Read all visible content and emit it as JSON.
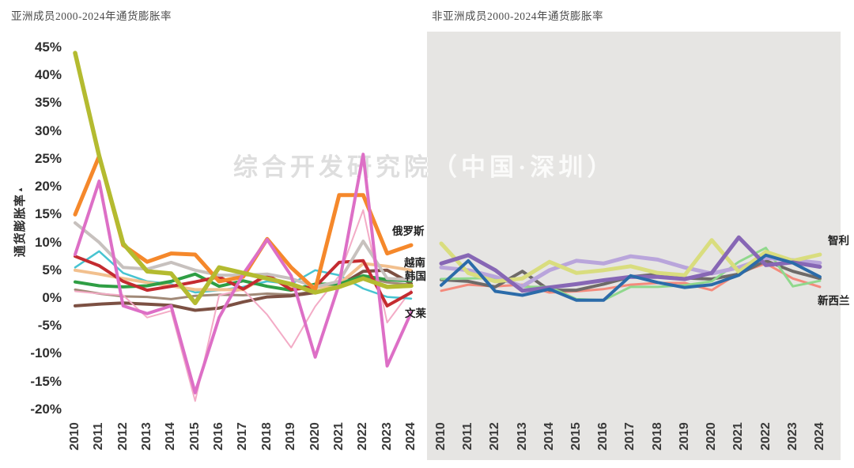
{
  "watermark": {
    "text": "综合开发研究院（中国·深圳）"
  },
  "chart_data": [
    {
      "type": "line",
      "title": "亚洲成员2000-2024年通货膨胀率",
      "ylabel": "通货膨胀率",
      "ylabel_mark": "▴",
      "ylim": [
        -20,
        45
      ],
      "grid": false,
      "legend": "none",
      "background": "#ffffff",
      "x_labels": [
        "2010",
        "2011",
        "2012",
        "2013",
        "2014",
        "2015",
        "2016",
        "2017",
        "2018",
        "2019",
        "2020",
        "2021",
        "2022",
        "2023",
        "2024"
      ],
      "ytick_values": [
        45,
        40,
        35,
        30,
        25,
        20,
        15,
        10,
        5,
        0,
        -5,
        -10,
        -15,
        -20
      ],
      "ytick_labels": [
        "45%",
        "40%",
        "35%",
        "30%",
        "25%",
        "20%",
        "15%",
        "10%",
        "5%",
        "0%",
        "-5%",
        "-10%",
        "-15%",
        "-20%"
      ],
      "series": [
        {
          "key": "rosybrown",
          "label": "",
          "color": "#a18977",
          "width": 3,
          "values": [
            1.5,
            0.8,
            0.3,
            0.2,
            -0.2,
            0.4,
            0.6,
            0.5,
            0.8,
            0.6,
            1.2,
            2.0,
            3.8,
            2.8,
            2.4
          ]
        },
        {
          "key": "darkbrown",
          "label": "",
          "color": "#7c5043",
          "width": 4,
          "values": [
            -1.4,
            -1.1,
            -0.9,
            -1.1,
            -1.3,
            -2.2,
            -1.8,
            -0.7,
            0.2,
            0.4,
            1.0,
            2.2,
            4.8,
            5.0,
            2.6
          ]
        },
        {
          "key": "lightpink",
          "label": "",
          "color": "#f3abc6",
          "width": 2,
          "values": [
            1.2,
            0.8,
            0.5,
            -3.5,
            -2.3,
            -18.5,
            0.5,
            1.5,
            -3.0,
            -8.9,
            -1.5,
            4.0,
            15.8,
            -4.4,
            1.4
          ]
        },
        {
          "key": "cyan",
          "label": "",
          "color": "#47c4d1",
          "width": 2.5,
          "values": [
            5.5,
            8.4,
            4.5,
            3.0,
            2.5,
            1.0,
            1.4,
            2.0,
            3.0,
            2.5,
            5.0,
            4.1,
            1.7,
            0.2,
            -0.1
          ]
        },
        {
          "key": "vietnam",
          "label": "越南",
          "color": "#f2c08e",
          "width": 4,
          "values": [
            5.0,
            4.3,
            3.5,
            2.8,
            2.2,
            1.5,
            1.5,
            1.5,
            4.0,
            2.0,
            1.8,
            2.5,
            6.2,
            5.7,
            5.0
          ]
        },
        {
          "key": "korea",
          "label": "韩国",
          "color": "#2f9e44",
          "width": 4,
          "values": [
            2.9,
            2.2,
            2.0,
            2.2,
            3.0,
            4.3,
            2.1,
            3.1,
            2.1,
            1.4,
            2.5,
            2.5,
            4.0,
            3.3,
            3.1
          ]
        },
        {
          "key": "crimson",
          "label": "",
          "color": "#c42b30",
          "width": 4,
          "values": [
            7.5,
            5.8,
            3.0,
            1.4,
            2.1,
            2.9,
            3.8,
            1.6,
            4.2,
            1.5,
            2.0,
            6.4,
            6.7,
            -1.4,
            1.0
          ]
        },
        {
          "key": "gray",
          "label": "",
          "color": "#c7c1be",
          "width": 4,
          "values": [
            13.5,
            10.0,
            5.5,
            5.2,
            6.4,
            5.0,
            4.1,
            4.1,
            4.3,
            3.5,
            2.0,
            3.0,
            10.2,
            3.5,
            3.3
          ]
        },
        {
          "key": "russia",
          "label": "俄罗斯",
          "color": "#f5882b",
          "width": 5,
          "values": [
            15.0,
            25.5,
            9.5,
            6.5,
            8.0,
            7.8,
            3.0,
            3.8,
            10.6,
            5.5,
            1.5,
            18.5,
            18.5,
            8.0,
            9.5
          ]
        },
        {
          "key": "brunei",
          "label": "文莱",
          "color": "#dd6fc6",
          "width": 4,
          "values": [
            7.8,
            21.0,
            -1.4,
            -2.8,
            -1.4,
            -17.0,
            -3.5,
            4.3,
            10.5,
            4.0,
            -10.6,
            2.5,
            25.8,
            -12.2,
            -2.6
          ]
        },
        {
          "key": "olive",
          "label": "",
          "color": "#b4bb30",
          "width": 5.5,
          "values": [
            44.0,
            25.5,
            9.8,
            4.8,
            4.4,
            -0.9,
            5.5,
            4.5,
            3.5,
            2.5,
            1.0,
            2.0,
            3.5,
            2.0,
            2.2
          ]
        }
      ],
      "annotations": [
        {
          "text": "俄罗斯",
          "year": 2023.2,
          "value": 12.3
        },
        {
          "text": "越南",
          "year": 2023.7,
          "value": 6.7
        },
        {
          "text": "韩国",
          "year": 2023.75,
          "value": 4.3
        },
        {
          "text": "文莱",
          "year": 2023.75,
          "value": -2.4
        }
      ]
    },
    {
      "type": "line",
      "title": "非亚洲成员2000-2024年通货膨胀率",
      "ylabel": "",
      "ylim": [
        -20,
        45
      ],
      "grid": false,
      "legend": "none",
      "background": "#e6e5e3",
      "x_labels": [
        "2010",
        "2011",
        "2012",
        "2013",
        "2014",
        "2015",
        "2016",
        "2017",
        "2018",
        "2019",
        "2020",
        "2021",
        "2022",
        "2023",
        "2024"
      ],
      "series": [
        {
          "key": "salmon",
          "label": "",
          "color": "#f48a7c",
          "width": 3,
          "values": [
            1.3,
            2.4,
            2.1,
            2.4,
            1.0,
            1.2,
            1.6,
            2.4,
            2.7,
            2.7,
            1.4,
            4.5,
            6.2,
            3.5,
            2.0
          ]
        },
        {
          "key": "darkgray",
          "label": "",
          "color": "#6e6a68",
          "width": 4,
          "values": [
            3.3,
            3.0,
            2.0,
            4.8,
            1.4,
            1.4,
            2.5,
            3.8,
            4.3,
            3.6,
            3.4,
            4.3,
            6.7,
            4.8,
            3.5
          ]
        },
        {
          "key": "lightgreen",
          "label": "",
          "color": "#90d88d",
          "width": 3,
          "values": [
            3.4,
            3.5,
            3.6,
            2.0,
            2.0,
            -0.2,
            -0.4,
            2.0,
            2.0,
            2.3,
            3.0,
            6.5,
            9.0,
            2.1,
            3.1
          ]
        },
        {
          "key": "lavender",
          "label": "",
          "color": "#b9a5db",
          "width": 5,
          "values": [
            5.5,
            5.0,
            3.8,
            2.1,
            5.0,
            6.7,
            6.2,
            7.5,
            6.9,
            5.5,
            4.4,
            5.5,
            7.2,
            6.8,
            6.3
          ]
        },
        {
          "key": "chile",
          "label": "智利",
          "color": "#d9dd7e",
          "width": 5,
          "values": [
            9.8,
            4.5,
            3.0,
            3.5,
            6.5,
            4.5,
            5.0,
            5.7,
            4.5,
            4.1,
            10.4,
            4.7,
            8.3,
            6.7,
            7.8
          ]
        },
        {
          "key": "purple",
          "label": "",
          "color": "#8767b5",
          "width": 5,
          "values": [
            6.2,
            7.7,
            5.0,
            1.3,
            1.9,
            2.5,
            3.2,
            3.8,
            3.8,
            3.4,
            4.5,
            10.9,
            5.9,
            6.4,
            5.6
          ]
        },
        {
          "key": "newzealand",
          "label": "新西兰",
          "color": "#2b6ba9",
          "width": 4,
          "values": [
            2.3,
            6.7,
            1.2,
            0.5,
            1.6,
            -0.4,
            -0.4,
            4.0,
            2.8,
            1.9,
            2.4,
            4.1,
            7.7,
            6.3,
            3.8
          ]
        }
      ],
      "annotations": [
        {
          "text": "智利",
          "year": 2024.3,
          "value": 10.6
        },
        {
          "text": "新西兰",
          "year": 2023.9,
          "value": -0.1
        }
      ]
    }
  ]
}
